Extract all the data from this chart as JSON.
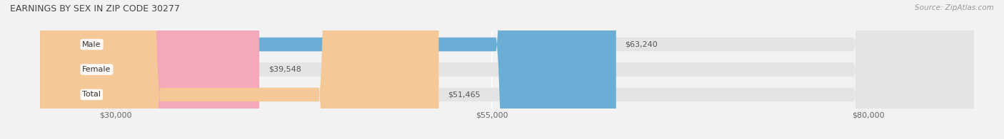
{
  "title": "EARNINGS BY SEX IN ZIP CODE 30277",
  "source": "Source: ZipAtlas.com",
  "categories": [
    "Male",
    "Female",
    "Total"
  ],
  "values": [
    63240,
    39548,
    51465
  ],
  "bar_colors": [
    "#6aaed6",
    "#f4a8ba",
    "#f5c897"
  ],
  "bar_bg_color": "#e4e4e4",
  "value_labels": [
    "$63,240",
    "$39,548",
    "$51,465"
  ],
  "x_min": 25000,
  "x_max": 87000,
  "x_ticks": [
    30000,
    55000,
    80000
  ],
  "x_tick_labels": [
    "$30,000",
    "$55,000",
    "$80,000"
  ],
  "background_color": "#f2f2f2",
  "title_fontsize": 9,
  "tick_fontsize": 8,
  "source_fontsize": 7.5
}
